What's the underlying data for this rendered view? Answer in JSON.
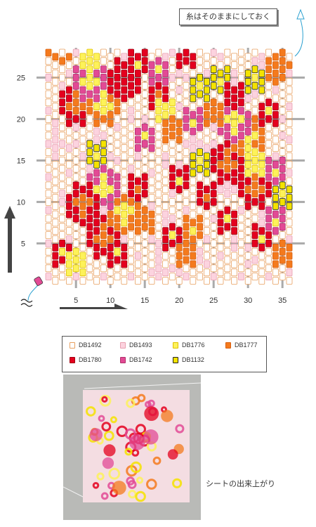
{
  "callout": {
    "text": "糸はそのままにしておく"
  },
  "x_ticks": [
    "5",
    "10",
    "15",
    "20",
    "25",
    "30",
    "35"
  ],
  "y_ticks": [
    "25",
    "20",
    "15",
    "10",
    "5"
  ],
  "legend": [
    {
      "code": "DB1492",
      "fill": "#ffffff",
      "stroke": "#e8a060"
    },
    {
      "code": "DB1493",
      "fill": "#fcd3df",
      "stroke": "#e8a0b0"
    },
    {
      "code": "DB1776",
      "fill": "#fdf25a",
      "stroke": "#e0c000"
    },
    {
      "code": "DB1777",
      "fill": "#f47a1d",
      "stroke": "#d86010"
    },
    {
      "code": "DB1780",
      "fill": "#e4001e",
      "stroke": "#a00010"
    },
    {
      "code": "DB1742",
      "fill": "#e24a95",
      "stroke": "#b0306a"
    },
    {
      "code": "DB1132",
      "fill": "#f4e300",
      "stroke": "#222222"
    }
  ],
  "photo_caption": "シートの出来上がり"
}
